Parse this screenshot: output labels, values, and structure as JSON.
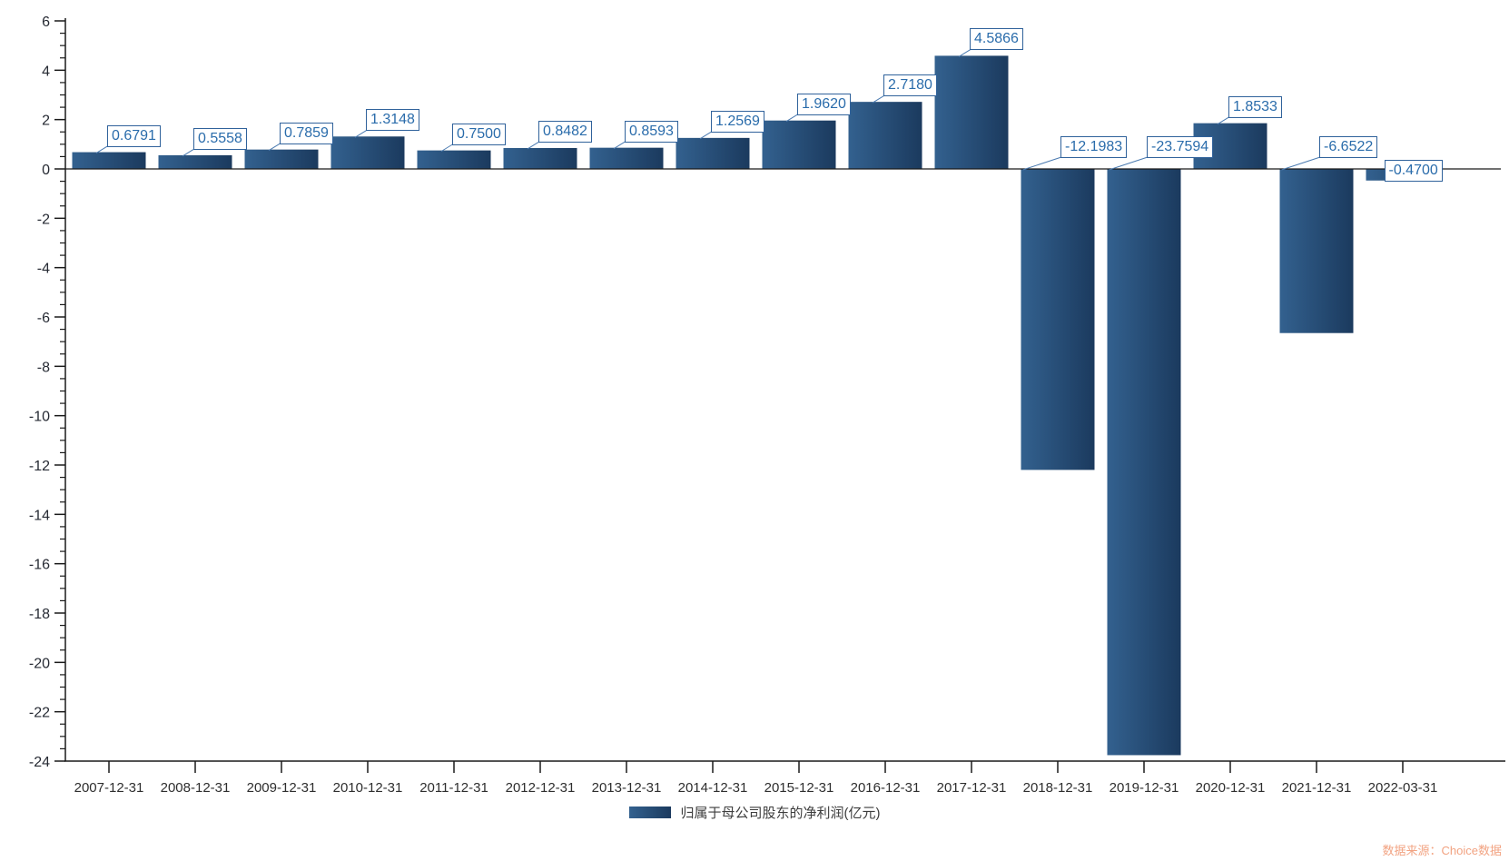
{
  "chart_data": {
    "type": "bar",
    "title": "",
    "categories": [
      "2007-12-31",
      "2008-12-31",
      "2009-12-31",
      "2010-12-31",
      "2011-12-31",
      "2012-12-31",
      "2013-12-31",
      "2014-12-31",
      "2015-12-31",
      "2016-12-31",
      "2017-12-31",
      "2018-12-31",
      "2019-12-31",
      "2020-12-31",
      "2021-12-31",
      "2022-03-31"
    ],
    "series": [
      {
        "name": "归属于母公司股东的净利润(亿元)",
        "values": [
          0.6791,
          0.5558,
          0.7859,
          1.3148,
          0.75,
          0.8482,
          0.8593,
          1.2569,
          1.962,
          2.718,
          4.5866,
          -12.1983,
          -23.7594,
          1.8533,
          -6.6522,
          -0.47
        ]
      }
    ],
    "value_labels": [
      "0.6791",
      "0.5558",
      "0.7859",
      "1.3148",
      "0.7500",
      "0.8482",
      "0.8593",
      "1.2569",
      "1.9620",
      "2.7180",
      "4.5866",
      "-12.1983",
      "-23.7594",
      "1.8533",
      "-6.6522",
      "-0.4700"
    ],
    "xlabel": "",
    "ylabel": "",
    "ylim": [
      -24,
      6
    ],
    "y_tick_step": 2,
    "y_minor_tick_step": 0.5,
    "grid": false,
    "legend_position": "bottom-center",
    "colors": {
      "bar_gradient_left": "#33618f",
      "bar_gradient_right": "#1b3a5e",
      "axis": "#1a1a1a",
      "value_label_text": "#2a6cab",
      "value_label_border": "#30629b",
      "leader_line": "#4a7ab0"
    }
  },
  "legend": {
    "label": "归属于母公司股东的净利润(亿元)"
  },
  "footer": {
    "source_text": "数据来源：Choice数据",
    "source_color": "#f2a382"
  }
}
